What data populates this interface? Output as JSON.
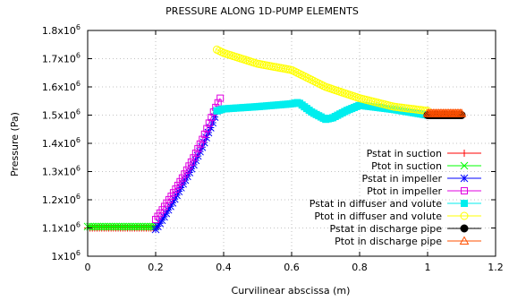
{
  "chart_data": {
    "type": "line",
    "title": "PRESSURE ALONG 1D-PUMP ELEMENTS",
    "xlabel": "Curvilinear abscissa (m)",
    "ylabel": "Pressure (Pa)",
    "xlim": [
      0,
      1.2
    ],
    "ylim": [
      1000000,
      1800000
    ],
    "xticks": [
      {
        "v": 0,
        "label": "0"
      },
      {
        "v": 0.2,
        "label": "0.2"
      },
      {
        "v": 0.4,
        "label": "0.4"
      },
      {
        "v": 0.6,
        "label": "0.6"
      },
      {
        "v": 0.8,
        "label": "0.8"
      },
      {
        "v": 1,
        "label": "1"
      },
      {
        "v": 1.2,
        "label": "1.2"
      }
    ],
    "yticks": [
      {
        "v": 1000000,
        "base": "1x10",
        "exp": "6"
      },
      {
        "v": 1100000,
        "base": "1.1x10",
        "exp": "6"
      },
      {
        "v": 1200000,
        "base": "1.2x10",
        "exp": "6"
      },
      {
        "v": 1300000,
        "base": "1.3x10",
        "exp": "6"
      },
      {
        "v": 1400000,
        "base": "1.4x10",
        "exp": "6"
      },
      {
        "v": 1500000,
        "base": "1.5x10",
        "exp": "6"
      },
      {
        "v": 1600000,
        "base": "1.6x10",
        "exp": "6"
      },
      {
        "v": 1700000,
        "base": "1.7x10",
        "exp": "6"
      },
      {
        "v": 1800000,
        "base": "1.8x10",
        "exp": "6"
      }
    ],
    "grid": true,
    "legend_position": "right",
    "series": [
      {
        "name": "Pstat in suction",
        "color": "#ff0000",
        "marker": "plus",
        "x": [
          0,
          0.2
        ],
        "y": [
          1100000,
          1100000
        ],
        "n_markers": 30
      },
      {
        "name": "Ptot in suction",
        "color": "#00ff00",
        "marker": "cross",
        "x": [
          0,
          0.2
        ],
        "y": [
          1105000,
          1105000
        ],
        "n_markers": 30
      },
      {
        "name": "Pstat in impeller",
        "color": "#0000ff",
        "marker": "star",
        "x": [
          0.2,
          0.22,
          0.25,
          0.28,
          0.31,
          0.34,
          0.37,
          0.38
        ],
        "y": [
          1095000,
          1130000,
          1190000,
          1255000,
          1320000,
          1395000,
          1480000,
          1515000
        ],
        "n_markers": 30
      },
      {
        "name": "Ptot in impeller",
        "color": "#e000e0",
        "marker": "square",
        "x": [
          0.2,
          0.22,
          0.25,
          0.28,
          0.31,
          0.34,
          0.37,
          0.39
        ],
        "y": [
          1130000,
          1165000,
          1220000,
          1280000,
          1345000,
          1420000,
          1510000,
          1560000
        ],
        "n_markers": 30
      },
      {
        "name": "Pstat in diffuser and volute",
        "color": "#00eeee",
        "marker": "filled-square",
        "x": [
          0.38,
          0.4,
          0.5,
          0.6,
          0.62,
          0.66,
          0.7,
          0.72,
          0.76,
          0.8,
          0.9,
          1.0
        ],
        "y": [
          1515000,
          1522000,
          1530000,
          1540000,
          1545000,
          1510000,
          1485000,
          1490000,
          1515000,
          1535000,
          1520000,
          1500000
        ],
        "n_markers": 90
      },
      {
        "name": "Ptot in diffuser and volute",
        "color": "#ffff00",
        "marker": "circle",
        "x": [
          0.38,
          0.4,
          0.5,
          0.6,
          0.62,
          0.7,
          0.8,
          0.9,
          1.0
        ],
        "y": [
          1732000,
          1720000,
          1682000,
          1660000,
          1648000,
          1600000,
          1560000,
          1530000,
          1515000
        ],
        "n_markers": 90
      },
      {
        "name": "Pstat in discharge pipe",
        "color": "#000000",
        "marker": "filled-circle",
        "x": [
          1.0,
          1.1
        ],
        "y": [
          1500000,
          1500000
        ],
        "n_markers": 25
      },
      {
        "name": "Ptot in discharge pipe",
        "color": "#ff5000",
        "marker": "triangle",
        "x": [
          1.0,
          1.1
        ],
        "y": [
          1506000,
          1506000
        ],
        "n_markers": 25
      }
    ]
  }
}
